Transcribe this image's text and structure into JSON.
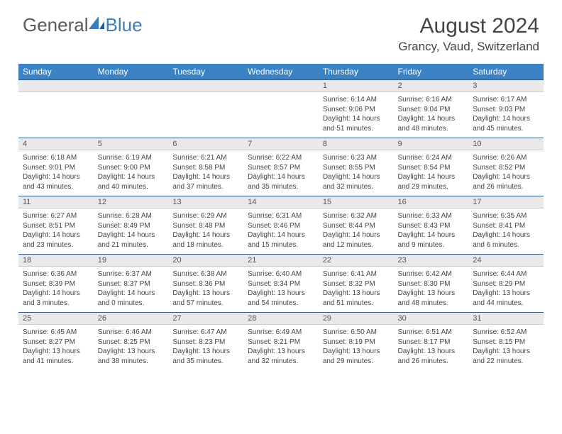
{
  "brand": {
    "part1": "General",
    "part2": "Blue"
  },
  "title": "August 2024",
  "location": "Grancy, Vaud, Switzerland",
  "colors": {
    "header_bg": "#3b82c4",
    "header_text": "#ffffff",
    "numrow_bg": "#e9e9e9",
    "border_top": "#2f5d8a",
    "text": "#444444",
    "logo_gray": "#5a5a5a",
    "logo_blue": "#3b7fbf"
  },
  "day_headers": [
    "Sunday",
    "Monday",
    "Tuesday",
    "Wednesday",
    "Thursday",
    "Friday",
    "Saturday"
  ],
  "weeks": [
    {
      "nums": [
        "",
        "",
        "",
        "",
        "1",
        "2",
        "3"
      ],
      "cells": [
        null,
        null,
        null,
        null,
        {
          "sunrise": "6:14 AM",
          "sunset": "9:06 PM",
          "daylight": "14 hours and 51 minutes."
        },
        {
          "sunrise": "6:16 AM",
          "sunset": "9:04 PM",
          "daylight": "14 hours and 48 minutes."
        },
        {
          "sunrise": "6:17 AM",
          "sunset": "9:03 PM",
          "daylight": "14 hours and 45 minutes."
        }
      ]
    },
    {
      "nums": [
        "4",
        "5",
        "6",
        "7",
        "8",
        "9",
        "10"
      ],
      "cells": [
        {
          "sunrise": "6:18 AM",
          "sunset": "9:01 PM",
          "daylight": "14 hours and 43 minutes."
        },
        {
          "sunrise": "6:19 AM",
          "sunset": "9:00 PM",
          "daylight": "14 hours and 40 minutes."
        },
        {
          "sunrise": "6:21 AM",
          "sunset": "8:58 PM",
          "daylight": "14 hours and 37 minutes."
        },
        {
          "sunrise": "6:22 AM",
          "sunset": "8:57 PM",
          "daylight": "14 hours and 35 minutes."
        },
        {
          "sunrise": "6:23 AM",
          "sunset": "8:55 PM",
          "daylight": "14 hours and 32 minutes."
        },
        {
          "sunrise": "6:24 AM",
          "sunset": "8:54 PM",
          "daylight": "14 hours and 29 minutes."
        },
        {
          "sunrise": "6:26 AM",
          "sunset": "8:52 PM",
          "daylight": "14 hours and 26 minutes."
        }
      ]
    },
    {
      "nums": [
        "11",
        "12",
        "13",
        "14",
        "15",
        "16",
        "17"
      ],
      "cells": [
        {
          "sunrise": "6:27 AM",
          "sunset": "8:51 PM",
          "daylight": "14 hours and 23 minutes."
        },
        {
          "sunrise": "6:28 AM",
          "sunset": "8:49 PM",
          "daylight": "14 hours and 21 minutes."
        },
        {
          "sunrise": "6:29 AM",
          "sunset": "8:48 PM",
          "daylight": "14 hours and 18 minutes."
        },
        {
          "sunrise": "6:31 AM",
          "sunset": "8:46 PM",
          "daylight": "14 hours and 15 minutes."
        },
        {
          "sunrise": "6:32 AM",
          "sunset": "8:44 PM",
          "daylight": "14 hours and 12 minutes."
        },
        {
          "sunrise": "6:33 AM",
          "sunset": "8:43 PM",
          "daylight": "14 hours and 9 minutes."
        },
        {
          "sunrise": "6:35 AM",
          "sunset": "8:41 PM",
          "daylight": "14 hours and 6 minutes."
        }
      ]
    },
    {
      "nums": [
        "18",
        "19",
        "20",
        "21",
        "22",
        "23",
        "24"
      ],
      "cells": [
        {
          "sunrise": "6:36 AM",
          "sunset": "8:39 PM",
          "daylight": "14 hours and 3 minutes."
        },
        {
          "sunrise": "6:37 AM",
          "sunset": "8:37 PM",
          "daylight": "14 hours and 0 minutes."
        },
        {
          "sunrise": "6:38 AM",
          "sunset": "8:36 PM",
          "daylight": "13 hours and 57 minutes."
        },
        {
          "sunrise": "6:40 AM",
          "sunset": "8:34 PM",
          "daylight": "13 hours and 54 minutes."
        },
        {
          "sunrise": "6:41 AM",
          "sunset": "8:32 PM",
          "daylight": "13 hours and 51 minutes."
        },
        {
          "sunrise": "6:42 AM",
          "sunset": "8:30 PM",
          "daylight": "13 hours and 48 minutes."
        },
        {
          "sunrise": "6:44 AM",
          "sunset": "8:29 PM",
          "daylight": "13 hours and 44 minutes."
        }
      ]
    },
    {
      "nums": [
        "25",
        "26",
        "27",
        "28",
        "29",
        "30",
        "31"
      ],
      "cells": [
        {
          "sunrise": "6:45 AM",
          "sunset": "8:27 PM",
          "daylight": "13 hours and 41 minutes."
        },
        {
          "sunrise": "6:46 AM",
          "sunset": "8:25 PM",
          "daylight": "13 hours and 38 minutes."
        },
        {
          "sunrise": "6:47 AM",
          "sunset": "8:23 PM",
          "daylight": "13 hours and 35 minutes."
        },
        {
          "sunrise": "6:49 AM",
          "sunset": "8:21 PM",
          "daylight": "13 hours and 32 minutes."
        },
        {
          "sunrise": "6:50 AM",
          "sunset": "8:19 PM",
          "daylight": "13 hours and 29 minutes."
        },
        {
          "sunrise": "6:51 AM",
          "sunset": "8:17 PM",
          "daylight": "13 hours and 26 minutes."
        },
        {
          "sunrise": "6:52 AM",
          "sunset": "8:15 PM",
          "daylight": "13 hours and 22 minutes."
        }
      ]
    }
  ],
  "labels": {
    "sunrise": "Sunrise:",
    "sunset": "Sunset:",
    "daylight": "Daylight:"
  }
}
